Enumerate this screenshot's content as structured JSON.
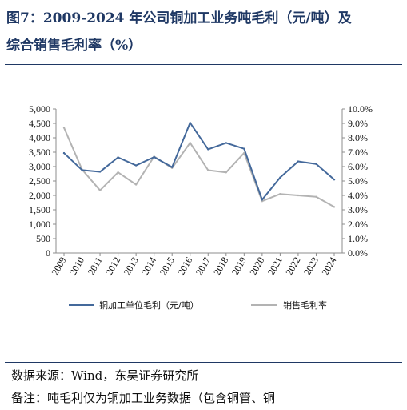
{
  "figure": {
    "title_line1": "图7：2009-2024 年公司铜加工业务吨毛利（元/吨）及",
    "title_line2": "综合销售毛利率（%）"
  },
  "chart_data": {
    "type": "line",
    "categories": [
      "2009",
      "2010",
      "2011",
      "2012",
      "2013",
      "2014",
      "2015",
      "2016",
      "2017",
      "2018",
      "2019",
      "2020",
      "2021",
      "2022",
      "2023",
      "2024"
    ],
    "series": [
      {
        "name": "铜加工单位毛利（元/吨）",
        "axis": "left",
        "color": "#44699b",
        "values": [
          3470,
          2880,
          2820,
          3320,
          3040,
          3330,
          2980,
          4520,
          3600,
          3820,
          3620,
          1850,
          2620,
          3180,
          3090,
          2550
        ]
      },
      {
        "name": "销售毛利率",
        "axis": "right",
        "color": "#b3b3b3",
        "values": [
          8.7,
          5.8,
          4.35,
          5.6,
          4.75,
          6.7,
          5.9,
          7.65,
          5.75,
          5.6,
          6.95,
          3.6,
          4.1,
          4.0,
          3.9,
          3.2
        ]
      }
    ],
    "y_left": {
      "min": 0,
      "max": 5000,
      "step": 500,
      "ticks": [
        "0",
        "500",
        "1,000",
        "1,500",
        "2,000",
        "2,500",
        "3,000",
        "3,500",
        "4,000",
        "4,500",
        "5,000"
      ]
    },
    "y_right": {
      "min": 0,
      "max": 10,
      "step": 1,
      "ticks": [
        "0.0%",
        "1.0%",
        "2.0%",
        "3.0%",
        "4.0%",
        "5.0%",
        "6.0%",
        "7.0%",
        "8.0%",
        "9.0%",
        "10.0%"
      ]
    },
    "grid": false,
    "legend_position": "bottom"
  },
  "footer": {
    "source": "数据来源：Wind，东吴证券研究所",
    "note": "备注：吨毛利仅为铜加工业务数据（包含铜管、铜"
  }
}
